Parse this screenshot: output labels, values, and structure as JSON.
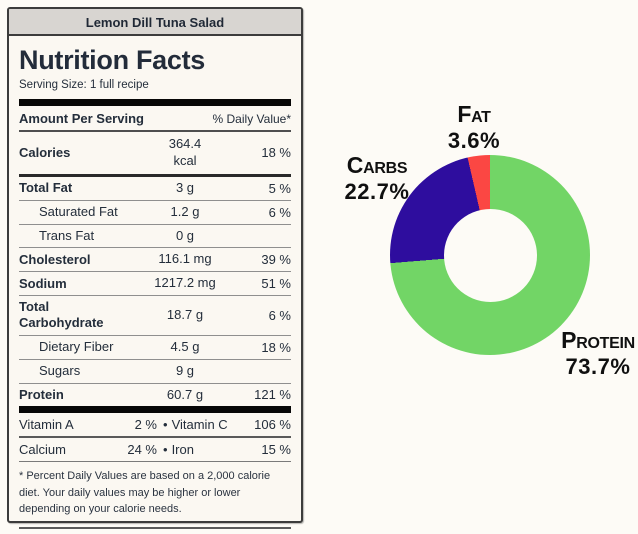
{
  "recipe_title": "Lemon Dill Tuna Salad",
  "label": {
    "title": "Nutrition Facts",
    "serving_size": "Serving Size: 1 full recipe",
    "amount_header": "Amount Per Serving",
    "dv_header": "% Daily Value*",
    "rows": [
      {
        "name": "Calories",
        "amount": "364.4 kcal",
        "dv": "18 %"
      },
      {
        "name": "Total Fat",
        "amount": "3 g",
        "dv": "5 %"
      },
      {
        "name": "Saturated Fat",
        "amount": "1.2 g",
        "dv": "6 %"
      },
      {
        "name": "Trans Fat",
        "amount": "0 g",
        "dv": ""
      },
      {
        "name": "Cholesterol",
        "amount": "116.1 mg",
        "dv": "39 %"
      },
      {
        "name": "Sodium",
        "amount": "1217.2 mg",
        "dv": "51 %"
      },
      {
        "name": "Total Carbohydrate",
        "amount": "18.7 g",
        "dv": "6 %"
      },
      {
        "name": "Dietary Fiber",
        "amount": "4.5 g",
        "dv": "18 %"
      },
      {
        "name": "Sugars",
        "amount": "9 g",
        "dv": ""
      },
      {
        "name": "Protein",
        "amount": "60.7 g",
        "dv": "121 %"
      }
    ],
    "micro_bullet": "•",
    "micros": [
      {
        "name": "Vitamin A",
        "value": "2 %",
        "name2": "Vitamin C",
        "value2": "106 %"
      },
      {
        "name": "Calcium",
        "value": "24 %",
        "name2": "Iron",
        "value2": "15 %"
      }
    ],
    "footnote": "* Percent Daily Values are based on a 2,000 calorie diet. Your daily values may be higher or lower depending on your calorie needs."
  },
  "chart_data": {
    "type": "pie",
    "subtype": "donut",
    "hole_ratio": 0.47,
    "start_angle": 90,
    "direction": "counterclockwise",
    "legend_position": "none",
    "labels": [
      "Fat",
      "Carbs",
      "Protein"
    ],
    "values": [
      3.6,
      22.7,
      73.7
    ],
    "value_labels": [
      "3.6%",
      "22.7%",
      "73.7%"
    ],
    "colors": [
      "#FB4743",
      "#2E0D9E",
      "#72D566"
    ]
  }
}
